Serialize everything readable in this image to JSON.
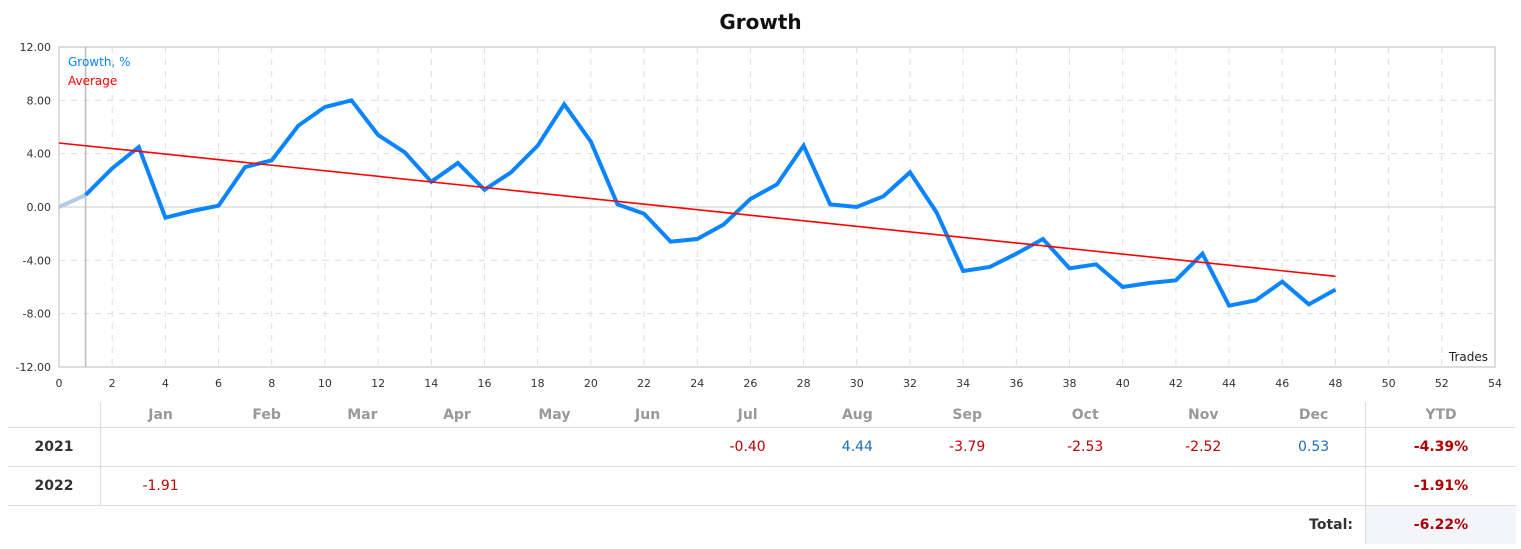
{
  "chart_data": {
    "type": "line",
    "title": "Growth",
    "xlabel": "Trades",
    "ylabel": "",
    "xlim": [
      0,
      54
    ],
    "ylim": [
      -12,
      12
    ],
    "xticks": [
      0,
      2,
      4,
      6,
      8,
      10,
      12,
      14,
      16,
      18,
      20,
      22,
      24,
      26,
      28,
      30,
      32,
      34,
      36,
      38,
      40,
      42,
      44,
      46,
      48,
      50,
      52,
      54
    ],
    "yticks": [
      "12.00",
      "8.00",
      "4.00",
      "0.00",
      "-4.00",
      "-8.00",
      "-12.00"
    ],
    "grid": true,
    "legend_placement": "top-left",
    "series": [
      {
        "name": "Growth, %",
        "color": "#0a84ff",
        "x": [
          0,
          1,
          2,
          3,
          4,
          5,
          6,
          7,
          8,
          9,
          10,
          11,
          12,
          13,
          14,
          15,
          16,
          17,
          18,
          19,
          20,
          21,
          22,
          23,
          24,
          25,
          26,
          27,
          28,
          29,
          30,
          31,
          32,
          33,
          34,
          35,
          36,
          37,
          38,
          39,
          40,
          41,
          42,
          43,
          44,
          45,
          46,
          47,
          48
        ],
        "y": [
          0,
          0.9,
          2.9,
          4.5,
          -0.8,
          -0.3,
          0.1,
          3.0,
          3.5,
          6.1,
          7.5,
          8.0,
          5.4,
          4.1,
          1.9,
          3.3,
          1.3,
          2.6,
          4.6,
          7.7,
          4.9,
          0.2,
          -0.5,
          -2.6,
          -2.4,
          -1.3,
          0.6,
          1.7,
          4.6,
          0.2,
          0.0,
          0.8,
          2.6,
          -0.4,
          -4.8,
          -4.5,
          -3.5,
          -2.4,
          -4.6,
          -4.3,
          -6.0,
          -5.7,
          -5.5,
          -3.5,
          -7.4,
          -7.0,
          -5.6,
          -7.3,
          -6.2
        ]
      },
      {
        "name": "Average",
        "color": "#ff0000",
        "x": [
          0,
          48
        ],
        "y": [
          4.8,
          -5.2
        ]
      }
    ]
  },
  "table": {
    "months": [
      "Jan",
      "Feb",
      "Mar",
      "Apr",
      "May",
      "Jun",
      "Jul",
      "Aug",
      "Sep",
      "Oct",
      "Nov",
      "Dec"
    ],
    "ytd_label": "YTD",
    "rows": [
      {
        "year": "2021",
        "values": [
          "",
          "",
          "",
          "",
          "",
          "",
          "-0.40",
          "4.44",
          "-3.79",
          "-2.53",
          "-2.52",
          "0.53"
        ],
        "ytd": "-4.39%"
      },
      {
        "year": "2022",
        "values": [
          "-1.91",
          "",
          "",
          "",
          "",
          "",
          "",
          "",
          "",
          "",
          "",
          ""
        ],
        "ytd": "-1.91%"
      }
    ],
    "total_label": "Total:",
    "total_value": "-6.22%"
  }
}
